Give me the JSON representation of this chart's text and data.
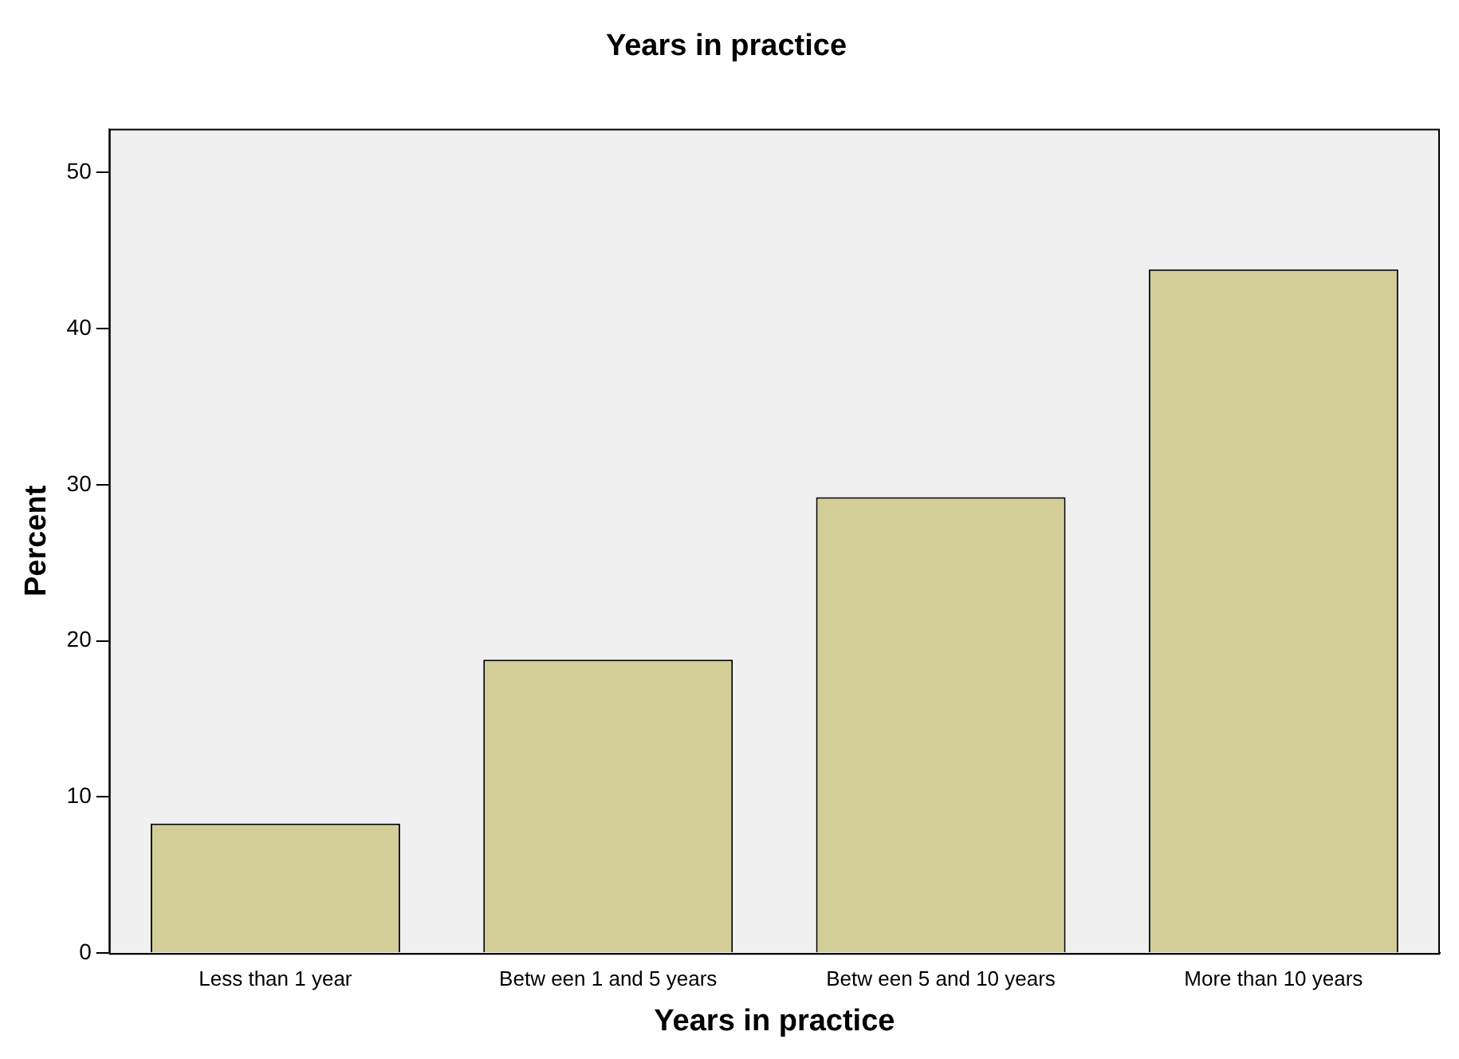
{
  "chart_data": {
    "type": "bar",
    "title": "Years in practice",
    "xlabel": "Years in practice",
    "ylabel": "Percent",
    "categories": [
      "Less than 1 year",
      "Betw een 1 and 5 years",
      "Betw een 5 and 10 years",
      "More than 10 years"
    ],
    "values": [
      8.3,
      18.8,
      29.2,
      43.8
    ],
    "color": "#d3ce97",
    "ylim": [
      0,
      52.8
    ],
    "yticks": [
      0,
      10,
      20,
      30,
      40,
      50
    ],
    "grid": false,
    "legend": false
  }
}
